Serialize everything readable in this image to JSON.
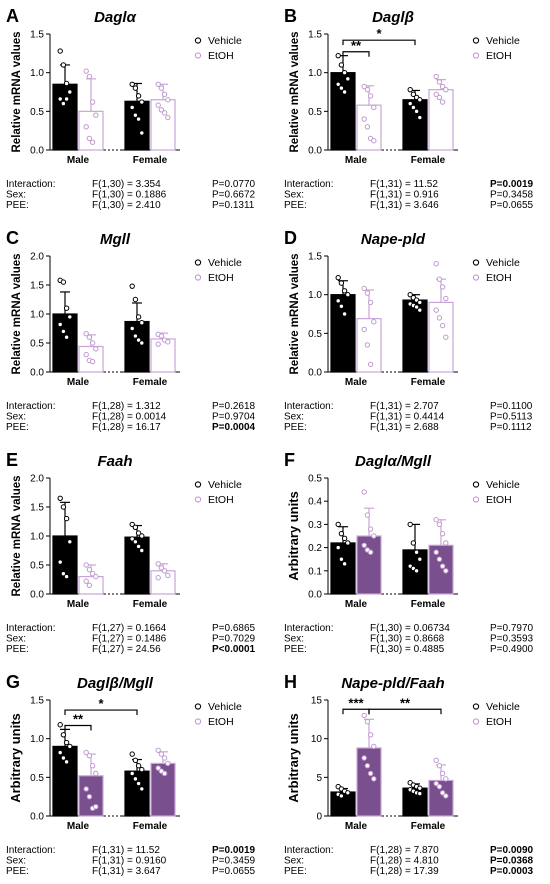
{
  "chart_data": [
    {
      "letter": "A",
      "type": "bar",
      "title": "Daglα",
      "title_italic": true,
      "ylabel": "Relative mRNA values",
      "ylim": [
        0,
        1.5
      ],
      "yticks": [
        "0.0",
        "0.5",
        "1.0",
        "1.5"
      ],
      "ytick_values": [
        0,
        0.5,
        1.0,
        1.5
      ],
      "categories": [
        "Male",
        "Female"
      ],
      "legend": [
        "Vehicle",
        "EtOH"
      ],
      "legend_position": "top-right",
      "series": [
        {
          "name": "Vehicle",
          "values": [
            0.85,
            0.63
          ],
          "errors": [
            0.25,
            0.23
          ],
          "points": [
            [
              1.28,
              1.1,
              0.86,
              0.75,
              0.66,
              0.6,
              0.66
            ],
            [
              0.85,
              0.8,
              0.7,
              0.62,
              0.55,
              0.45,
              0.4,
              0.22
            ]
          ]
        },
        {
          "name": "EtOH",
          "values": [
            0.5,
            0.65
          ],
          "errors": [
            0.42,
            0.2
          ],
          "points": [
            [
              1.02,
              0.95,
              0.62,
              0.45,
              0.3,
              0.15,
              0.1
            ],
            [
              0.85,
              0.8,
              0.72,
              0.65,
              0.58,
              0.52,
              0.48,
              0.42
            ]
          ]
        }
      ],
      "brackets": [],
      "stats": [
        {
          "label": "Interaction:",
          "f": "F(1,30) = 3.354",
          "p": "P=0.0770",
          "bold": false
        },
        {
          "label": "Sex:",
          "f": "F(1,30) = 0.1886",
          "p": "P=0.6672",
          "bold": false
        },
        {
          "label": "PEE:",
          "f": "F(1,30) = 2.410",
          "p": "P=0.1311",
          "bold": false
        }
      ]
    },
    {
      "letter": "B",
      "type": "bar",
      "title": "Daglβ",
      "title_italic": true,
      "ylabel": "Relative mRNA values",
      "ylim": [
        0,
        1.5
      ],
      "yticks": [
        "0.0",
        "0.5",
        "1.0",
        "1.5"
      ],
      "ytick_values": [
        0,
        0.5,
        1.0,
        1.5
      ],
      "categories": [
        "Male",
        "Female"
      ],
      "legend": [
        "Vehicle",
        "EtOH"
      ],
      "legend_position": "top-right",
      "series": [
        {
          "name": "Vehicle",
          "values": [
            1.0,
            0.65
          ],
          "errors": [
            0.22,
            0.12
          ],
          "points": [
            [
              1.22,
              1.1,
              1.0,
              0.92,
              0.85,
              0.8,
              0.75
            ],
            [
              0.78,
              0.72,
              0.68,
              0.65,
              0.6,
              0.55,
              0.5,
              0.42
            ]
          ]
        },
        {
          "name": "EtOH",
          "values": [
            0.58,
            0.78
          ],
          "errors": [
            0.25,
            0.13
          ],
          "points": [
            [
              0.82,
              0.78,
              0.7,
              0.55,
              0.4,
              0.3,
              0.15,
              0.12
            ],
            [
              0.95,
              0.88,
              0.82,
              0.78,
              0.72,
              0.68,
              0.62
            ]
          ]
        }
      ],
      "brackets": [
        {
          "from": [
            0,
            0
          ],
          "to": [
            0,
            1
          ],
          "y": 1.27,
          "label": "**"
        },
        {
          "from": [
            0,
            0
          ],
          "to": [
            1,
            0
          ],
          "y": 1.42,
          "label": "*"
        }
      ],
      "stats": [
        {
          "label": "Interaction:",
          "f": "F(1,31) = 11.52",
          "p": "P=0.0019",
          "bold": true
        },
        {
          "label": "Sex:",
          "f": "F(1,31) = 0.916",
          "p": "P=0.3458",
          "bold": false
        },
        {
          "label": "PEE:",
          "f": "F(1,31) = 3.646",
          "p": "P=0.0655",
          "bold": false
        }
      ]
    },
    {
      "letter": "C",
      "type": "bar",
      "title": "Mgll",
      "title_italic": true,
      "ylabel": "Relative mRNA values",
      "ylim": [
        0,
        2.0
      ],
      "yticks": [
        "0.0",
        "0.5",
        "1.0",
        "1.5",
        "2.0"
      ],
      "ytick_values": [
        0,
        0.5,
        1.0,
        1.5,
        2.0
      ],
      "categories": [
        "Male",
        "Female"
      ],
      "legend": [
        "Vehicle",
        "EtOH"
      ],
      "legend_position": "top-right",
      "series": [
        {
          "name": "Vehicle",
          "values": [
            1.0,
            0.87
          ],
          "errors": [
            0.38,
            0.32
          ],
          "points": [
            [
              1.58,
              1.55,
              1.1,
              0.95,
              0.82,
              0.7,
              0.6
            ],
            [
              1.48,
              1.25,
              0.95,
              0.85,
              0.75,
              0.62,
              0.55,
              0.5
            ]
          ]
        },
        {
          "name": "EtOH",
          "values": [
            0.44,
            0.57
          ],
          "errors": [
            0.2,
            0.1
          ],
          "points": [
            [
              0.66,
              0.6,
              0.5,
              0.4,
              0.3,
              0.2,
              0.18
            ],
            [
              0.65,
              0.62,
              0.55,
              0.52,
              0.48
            ]
          ]
        }
      ],
      "brackets": [],
      "stats": [
        {
          "label": "Interaction:",
          "f": "F(1,28) = 1.312",
          "p": "P=0.2618",
          "bold": false
        },
        {
          "label": "Sex:",
          "f": "F(1,28) = 0.0014",
          "p": "P=0.9704",
          "bold": false
        },
        {
          "label": "PEE:",
          "f": "F(1,28) = 16.17",
          "p": "P=0.0004",
          "bold": true
        }
      ]
    },
    {
      "letter": "D",
      "type": "bar",
      "title": "Nape-pld",
      "title_italic": true,
      "ylabel": "Relative mRNA values",
      "ylim": [
        0,
        1.5
      ],
      "yticks": [
        "0.0",
        "0.5",
        "1.0",
        "1.5"
      ],
      "ytick_values": [
        0,
        0.5,
        1.0,
        1.5
      ],
      "categories": [
        "Male",
        "Female"
      ],
      "legend": [
        "Vehicle",
        "EtOH"
      ],
      "legend_position": "top-right",
      "series": [
        {
          "name": "Vehicle",
          "values": [
            1.0,
            0.93
          ],
          "errors": [
            0.18,
            0.07
          ],
          "points": [
            [
              1.22,
              1.15,
              1.05,
              1.0,
              0.92,
              0.85,
              0.75
            ],
            [
              1.0,
              0.96,
              0.93,
              0.9,
              0.88,
              0.86,
              0.84,
              0.8
            ]
          ]
        },
        {
          "name": "EtOH",
          "values": [
            0.69,
            0.9
          ],
          "errors": [
            0.37,
            0.3
          ],
          "points": [
            [
              1.08,
              1.02,
              0.9,
              0.65,
              0.55,
              0.35,
              0.1
            ],
            [
              1.4,
              1.2,
              1.1,
              0.95,
              0.8,
              0.7,
              0.6,
              0.45
            ]
          ]
        }
      ],
      "brackets": [],
      "stats": [
        {
          "label": "Interaction:",
          "f": "F(1,31) = 2.707",
          "p": "P=0.1100",
          "bold": false
        },
        {
          "label": "Sex:",
          "f": "F(1,31) = 0.4414",
          "p": "P=0.5113",
          "bold": false
        },
        {
          "label": "PEE:",
          "f": "F(1,31) = 2.688",
          "p": "P=0.1112",
          "bold": false
        }
      ]
    },
    {
      "letter": "E",
      "type": "bar",
      "title": "Faah",
      "title_italic": true,
      "ylabel": "Relative mRNA values",
      "ylim": [
        0,
        2.0
      ],
      "yticks": [
        "0.0",
        "0.5",
        "1.0",
        "1.5",
        "2.0"
      ],
      "ytick_values": [
        0,
        0.5,
        1.0,
        1.5,
        2.0
      ],
      "categories": [
        "Male",
        "Female"
      ],
      "legend": [
        "Vehicle",
        "EtOH"
      ],
      "legend_position": "top-right",
      "series": [
        {
          "name": "Vehicle",
          "values": [
            1.0,
            0.98
          ],
          "errors": [
            0.58,
            0.2
          ],
          "points": [
            [
              1.65,
              1.5,
              1.3,
              0.9,
              0.55,
              0.35,
              0.3
            ],
            [
              1.2,
              1.15,
              1.05,
              1.0,
              0.95,
              0.9,
              0.82,
              0.75
            ]
          ]
        },
        {
          "name": "EtOH",
          "values": [
            0.3,
            0.4
          ],
          "errors": [
            0.2,
            0.12
          ],
          "points": [
            [
              0.5,
              0.42,
              0.35,
              0.3,
              0.22,
              0.15
            ],
            [
              0.52,
              0.45,
              0.4,
              0.32,
              0.28
            ]
          ]
        }
      ],
      "brackets": [],
      "stats": [
        {
          "label": "Interaction:",
          "f": "F(1,27) = 0.1664",
          "p": "P=0.6865",
          "bold": false
        },
        {
          "label": "Sex:",
          "f": "F(1,27) = 0.1486",
          "p": "P=0.7029",
          "bold": false
        },
        {
          "label": "PEE:",
          "f": "F(1,27) = 24.56",
          "p": "P<0.0001",
          "bold": true
        }
      ]
    },
    {
      "letter": "F",
      "type": "bar",
      "title": "Daglα/Mgll",
      "title_italic": true,
      "ylabel": "Arbitrary units",
      "ylim": [
        0,
        0.5
      ],
      "yticks": [
        "0.0",
        "0.1",
        "0.2",
        "0.3",
        "0.4",
        "0.5"
      ],
      "ytick_values": [
        0,
        0.1,
        0.2,
        0.3,
        0.4,
        0.5
      ],
      "categories": [
        "Male",
        "Female"
      ],
      "legend": [
        "Vehicle",
        "EtOH"
      ],
      "legend_position": "top-right",
      "series": [
        {
          "name": "Vehicle",
          "values": [
            0.22,
            0.19
          ],
          "errors": [
            0.07,
            0.11
          ],
          "points": [
            [
              0.3,
              0.26,
              0.24,
              0.22,
              0.2,
              0.15,
              0.13
            ],
            [
              0.3,
              0.22,
              0.18,
              0.15,
              0.12,
              0.11,
              0.1
            ]
          ]
        },
        {
          "name": "EtOH",
          "values": [
            0.25,
            0.21
          ],
          "errors": [
            0.12,
            0.11
          ],
          "points": [
            [
              0.44,
              0.34,
              0.28,
              0.25,
              0.21,
              0.19,
              0.18
            ],
            [
              0.32,
              0.3,
              0.26,
              0.22,
              0.18,
              0.15,
              0.12,
              0.1
            ]
          ]
        }
      ],
      "brackets": [],
      "stats": [
        {
          "label": "Interaction:",
          "f": "F(1,30) = 0.06734",
          "p": "P=0.7970",
          "bold": false
        },
        {
          "label": "Sex:",
          "f": "F(1,30) = 0.8668",
          "p": "P=0.3593",
          "bold": false
        },
        {
          "label": "PEE:",
          "f": "F(1,30) = 0.4885",
          "p": "P=0.4900",
          "bold": false
        }
      ]
    },
    {
      "letter": "G",
      "type": "bar",
      "title": "Daglβ/Mgll",
      "title_italic": true,
      "ylabel": "Arbitrary units",
      "ylim": [
        0,
        1.5
      ],
      "yticks": [
        "0.0",
        "0.5",
        "1.0",
        "1.5"
      ],
      "ytick_values": [
        0,
        0.5,
        1.0,
        1.5
      ],
      "categories": [
        "Male",
        "Female"
      ],
      "legend": [
        "Vehicle",
        "EtOH"
      ],
      "legend_position": "top-right",
      "series": [
        {
          "name": "Vehicle",
          "values": [
            0.9,
            0.58
          ],
          "errors": [
            0.22,
            0.15
          ],
          "points": [
            [
              1.18,
              1.05,
              0.95,
              0.9,
              0.82,
              0.75,
              0.7
            ],
            [
              0.8,
              0.72,
              0.65,
              0.6,
              0.55,
              0.48,
              0.42,
              0.35
            ]
          ]
        },
        {
          "name": "EtOH",
          "values": [
            0.52,
            0.68
          ],
          "errors": [
            0.28,
            0.15
          ],
          "points": [
            [
              0.82,
              0.78,
              0.65,
              0.55,
              0.35,
              0.25,
              0.1,
              0.12
            ],
            [
              0.85,
              0.8,
              0.75,
              0.68,
              0.62,
              0.58,
              0.55
            ]
          ]
        }
      ],
      "brackets": [
        {
          "from": [
            0,
            0
          ],
          "to": [
            0,
            1
          ],
          "y": 1.17,
          "label": "**"
        },
        {
          "from": [
            0,
            0
          ],
          "to": [
            1,
            0
          ],
          "y": 1.37,
          "label": "*"
        }
      ],
      "stats": [
        {
          "label": "Interaction:",
          "f": "F(1,31) = 11.52",
          "p": "P=0.0019",
          "bold": true
        },
        {
          "label": "Sex:",
          "f": "F(1,31) = 0.9160",
          "p": "P=0.3459",
          "bold": false
        },
        {
          "label": "PEE:",
          "f": "F(1,31) = 3.647",
          "p": "P=0.0655",
          "bold": false
        }
      ]
    },
    {
      "letter": "H",
      "type": "bar",
      "title": "Nape-pld/Faah",
      "title_italic": true,
      "ylabel": "Arbitrary units",
      "ylim": [
        0,
        15
      ],
      "yticks": [
        "0",
        "5",
        "10",
        "15"
      ],
      "ytick_values": [
        0,
        5,
        10,
        15
      ],
      "categories": [
        "Male",
        "Female"
      ],
      "legend": [
        "Vehicle",
        "EtOH"
      ],
      "legend_position": "top-right",
      "series": [
        {
          "name": "Vehicle",
          "values": [
            3.1,
            3.6
          ],
          "errors": [
            0.45,
            0.55
          ],
          "points": [
            [
              3.8,
              3.5,
              3.2,
              3.0,
              2.8,
              2.6
            ],
            [
              4.3,
              4.0,
              3.8,
              3.6,
              3.4,
              3.2,
              3.0,
              2.9
            ]
          ]
        },
        {
          "name": "EtOH",
          "values": [
            8.8,
            4.6
          ],
          "errors": [
            3.7,
            2.0
          ],
          "points": [
            [
              13.0,
              12.2,
              10.5,
              9.0,
              7.5,
              6.5,
              5.5,
              4.8
            ],
            [
              7.2,
              6.5,
              5.5,
              4.8,
              4.2,
              3.8,
              3.0,
              2.6
            ]
          ]
        }
      ],
      "brackets": [
        {
          "from": [
            0,
            0
          ],
          "to": [
            0,
            1
          ],
          "y": 13.8,
          "label": "***"
        },
        {
          "from": [
            0,
            1
          ],
          "to": [
            1,
            1
          ],
          "y": 13.8,
          "label": "**"
        }
      ],
      "stats": [
        {
          "label": "Interaction:",
          "f": "F(1,28) = 7.870",
          "p": "P=0.0090",
          "bold": true
        },
        {
          "label": "Sex:",
          "f": "F(1,28) = 4.810",
          "p": "P=0.0368",
          "bold": true
        },
        {
          "label": "PEE:",
          "f": "F(1,28) = 17.39",
          "p": "P=0.0003",
          "bold": true
        }
      ]
    }
  ],
  "colors": {
    "vehicle_fill": "#000000",
    "etoh_fill": "#ffffff",
    "etoh_stroke": "#c9a5d6",
    "etoh_point": "#c09ad0",
    "vehicle_point_stroke": "#ffffff",
    "dark_fill_panels": "#7a4f8e"
  }
}
